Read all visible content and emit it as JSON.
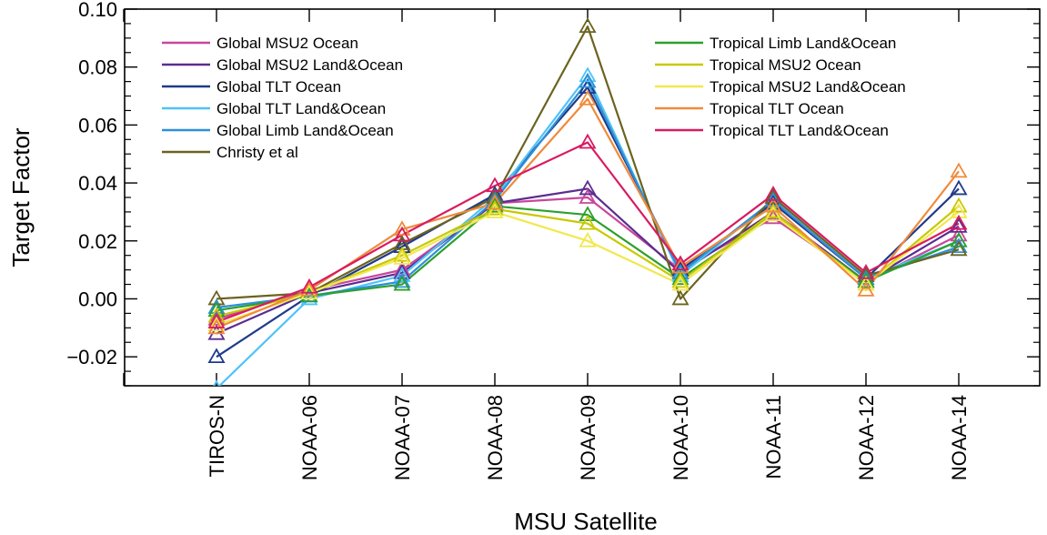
{
  "chart_data": {
    "type": "line",
    "title": "",
    "xlabel": "MSU Satellite",
    "ylabel": "Target Factor",
    "categories": [
      "TIROS-N",
      "NOAA-06",
      "NOAA-07",
      "NOAA-08",
      "NOAA-09",
      "NOAA-10",
      "NOAA-11",
      "NOAA-12",
      "NOAA-14"
    ],
    "ylim": [
      -0.03,
      0.1
    ],
    "yticks": [
      -0.02,
      0.0,
      0.02,
      0.04,
      0.06,
      0.08,
      0.1
    ],
    "ytick_labels": [
      "−0.02",
      "0.00",
      "0.02",
      "0.04",
      "0.06",
      "0.08",
      "0.10"
    ],
    "grid": false,
    "marker": "triangle-open",
    "legend": {
      "placement": "top-left, two columns"
    },
    "series": [
      {
        "name": "Global MSU2 Ocean",
        "color": "#c8479b",
        "values": [
          -0.007,
          0.003,
          0.01,
          0.033,
          0.035,
          0.01,
          0.028,
          0.006,
          0.022
        ]
      },
      {
        "name": "Global MSU2 Land&Ocean",
        "color": "#5b2d90",
        "values": [
          -0.012,
          0.002,
          0.009,
          0.033,
          0.038,
          0.009,
          0.03,
          0.006,
          0.025
        ]
      },
      {
        "name": "Global TLT Ocean",
        "color": "#1f3a8a",
        "values": [
          -0.02,
          0.001,
          0.018,
          0.036,
          0.073,
          0.01,
          0.033,
          0.007,
          0.038
        ]
      },
      {
        "name": "Global TLT Land&Ocean",
        "color": "#4fc3f7",
        "values": [
          -0.031,
          0.0,
          0.008,
          0.035,
          0.077,
          0.008,
          0.034,
          0.007,
          0.02
        ]
      },
      {
        "name": "Global Limb Land&Ocean",
        "color": "#2f8fd8",
        "values": [
          -0.003,
          0.001,
          0.006,
          0.034,
          0.075,
          0.009,
          0.034,
          0.007,
          0.018
        ]
      },
      {
        "name": "Christy et al",
        "color": "#6b6320",
        "values": [
          0.0,
          0.002,
          0.019,
          0.035,
          0.094,
          0.0,
          0.035,
          0.008,
          0.017
        ]
      },
      {
        "name": "Tropical Limb Land&Ocean",
        "color": "#2ca02c",
        "values": [
          -0.004,
          0.001,
          0.005,
          0.032,
          0.029,
          0.007,
          0.029,
          0.006,
          0.02
        ]
      },
      {
        "name": "Tropical MSU2 Ocean",
        "color": "#c8c800",
        "values": [
          -0.006,
          0.002,
          0.015,
          0.031,
          0.026,
          0.006,
          0.03,
          0.005,
          0.032
        ]
      },
      {
        "name": "Tropical MSU2 Land&Ocean",
        "color": "#f2e84c",
        "values": [
          -0.009,
          0.002,
          0.014,
          0.03,
          0.02,
          0.005,
          0.029,
          0.005,
          0.03
        ]
      },
      {
        "name": "Tropical TLT Ocean",
        "color": "#f08a3c",
        "values": [
          -0.01,
          0.003,
          0.024,
          0.033,
          0.069,
          0.011,
          0.032,
          0.003,
          0.044
        ]
      },
      {
        "name": "Tropical TLT Land&Ocean",
        "color": "#d81b60",
        "values": [
          -0.008,
          0.004,
          0.022,
          0.039,
          0.054,
          0.012,
          0.036,
          0.009,
          0.026
        ]
      }
    ]
  }
}
